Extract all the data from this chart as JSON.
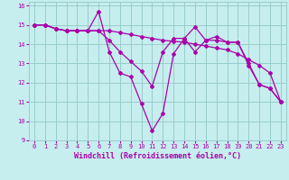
{
  "title": "",
  "xlabel": "Windchill (Refroidissement éolien,°C)",
  "xlim": [
    -0.5,
    23.5
  ],
  "ylim": [
    9,
    16.2
  ],
  "yticks": [
    9,
    10,
    11,
    12,
    13,
    14,
    15,
    16
  ],
  "xticks": [
    0,
    1,
    2,
    3,
    4,
    5,
    6,
    7,
    8,
    9,
    10,
    11,
    12,
    13,
    14,
    15,
    16,
    17,
    18,
    19,
    20,
    21,
    22,
    23
  ],
  "bg_color": "#c6eeee",
  "line_color": "#aa00aa",
  "series": [
    {
      "x": [
        0,
        1,
        2,
        3,
        4,
        5,
        6,
        7,
        8,
        9,
        10,
        11,
        12,
        13,
        14,
        15,
        16,
        17,
        18,
        19,
        20,
        21,
        22,
        23
      ],
      "y": [
        15.0,
        15.0,
        14.8,
        14.7,
        14.7,
        14.7,
        15.7,
        13.6,
        12.5,
        12.3,
        10.9,
        9.5,
        10.4,
        13.5,
        14.3,
        13.6,
        14.2,
        14.4,
        14.1,
        14.1,
        12.9,
        11.9,
        11.7,
        11.0
      ]
    },
    {
      "x": [
        0,
        1,
        2,
        3,
        4,
        5,
        6,
        7,
        8,
        9,
        10,
        11,
        12,
        13,
        14,
        15,
        16,
        17,
        18,
        19,
        20,
        21,
        22,
        23
      ],
      "y": [
        15.0,
        15.0,
        14.8,
        14.7,
        14.7,
        14.7,
        14.7,
        14.7,
        14.6,
        14.5,
        14.4,
        14.3,
        14.2,
        14.15,
        14.1,
        14.0,
        13.9,
        13.8,
        13.7,
        13.5,
        13.2,
        12.9,
        12.5,
        11.0
      ]
    },
    {
      "x": [
        0,
        1,
        2,
        3,
        4,
        5,
        6,
        7,
        8,
        9,
        10,
        11,
        12,
        13,
        14,
        15,
        16,
        17,
        18,
        19,
        20,
        21,
        22,
        23
      ],
      "y": [
        15.0,
        15.0,
        14.8,
        14.7,
        14.7,
        14.7,
        14.7,
        14.2,
        13.6,
        13.1,
        12.6,
        11.8,
        13.6,
        14.3,
        14.3,
        14.9,
        14.2,
        14.2,
        14.1,
        14.1,
        13.0,
        11.9,
        11.7,
        11.0
      ]
    }
  ],
  "grid_color": "#99cccc",
  "tick_fontsize": 5,
  "label_fontsize": 6
}
